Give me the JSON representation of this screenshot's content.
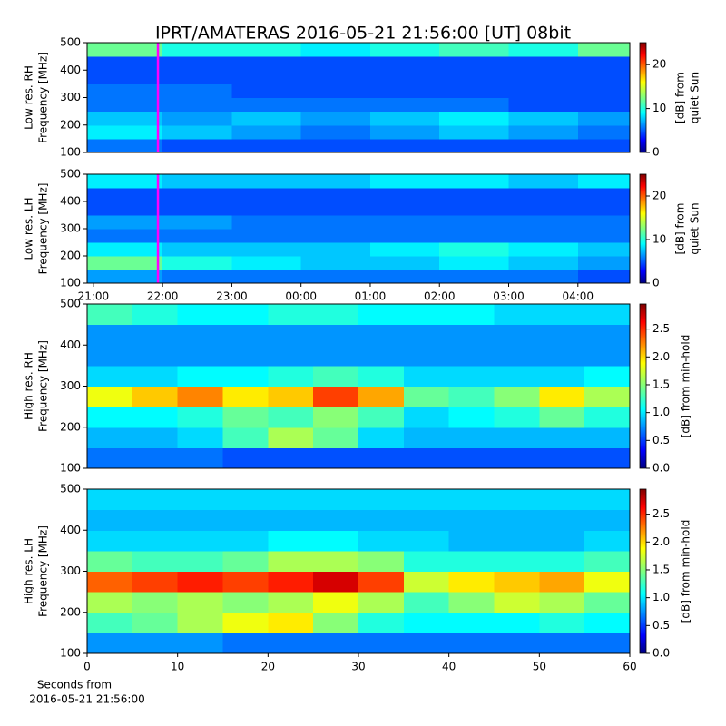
{
  "chart_data": [
    {
      "type": "heatmap",
      "title": "IPRT/AMATERAS 2016-05-21 21:56:00 [UT]   08bit",
      "ylabel": [
        "Low res. RH",
        "Frequency [MHz]"
      ],
      "ylim": [
        100,
        500
      ],
      "yticks": [
        100,
        200,
        300,
        400,
        500
      ],
      "xlim": [
        20.91,
        28.75
      ],
      "x_bins": [
        20.91,
        22,
        23,
        24,
        25,
        26,
        27,
        28,
        28.75
      ],
      "y_bins": [
        100,
        150,
        200,
        250,
        300,
        350,
        400,
        450,
        500
      ],
      "z": [
        [
          6,
          5,
          5,
          5,
          5,
          5,
          5,
          5
        ],
        [
          9,
          8,
          7,
          6,
          7,
          8,
          7,
          6
        ],
        [
          8,
          7,
          8,
          7,
          8,
          9,
          8,
          7
        ],
        [
          6,
          6,
          6,
          6,
          6,
          6,
          5,
          5
        ],
        [
          6,
          6,
          5,
          5,
          5,
          5,
          5,
          5
        ],
        [
          5,
          5,
          5,
          5,
          5,
          5,
          5,
          5
        ],
        [
          5,
          5,
          5,
          5,
          5,
          5,
          5,
          5
        ],
        [
          12,
          10,
          10,
          9,
          10,
          11,
          10,
          12
        ]
      ],
      "zlim": [
        0,
        25
      ],
      "zticks": [
        0,
        10,
        20
      ],
      "colorbar_label": [
        "[dB] from",
        "quiet Sun"
      ],
      "marker_x": 21.933,
      "marker_color": "#ff00ff"
    },
    {
      "type": "heatmap",
      "ylabel": [
        "Low res. LH",
        "Frequency [MHz]"
      ],
      "ylim": [
        100,
        500
      ],
      "yticks": [
        100,
        200,
        300,
        400,
        500
      ],
      "xlim": [
        20.91,
        28.75
      ],
      "x_bins": [
        20.91,
        22,
        23,
        24,
        25,
        26,
        27,
        28,
        28.75
      ],
      "xticks": [
        {
          "value": 21,
          "label": "21:00"
        },
        {
          "value": 22,
          "label": "22:00"
        },
        {
          "value": 23,
          "label": "23:00"
        },
        {
          "value": 24,
          "label": "00:00"
        },
        {
          "value": 25,
          "label": "01:00"
        },
        {
          "value": 26,
          "label": "02:00"
        },
        {
          "value": 27,
          "label": "03:00"
        },
        {
          "value": 28,
          "label": "04:00"
        }
      ],
      "y_bins": [
        100,
        150,
        200,
        250,
        300,
        350,
        400,
        450,
        500
      ],
      "z": [
        [
          7,
          6,
          6,
          6,
          6,
          6,
          6,
          5
        ],
        [
          12,
          10,
          9,
          8,
          8,
          9,
          8,
          7
        ],
        [
          9,
          8,
          8,
          8,
          9,
          10,
          9,
          8
        ],
        [
          6,
          6,
          6,
          6,
          6,
          6,
          6,
          6
        ],
        [
          7,
          7,
          6,
          6,
          6,
          6,
          6,
          6
        ],
        [
          5,
          5,
          5,
          5,
          5,
          5,
          5,
          5
        ],
        [
          5,
          5,
          5,
          5,
          5,
          5,
          5,
          5
        ],
        [
          9,
          8,
          8,
          8,
          9,
          9,
          8,
          9
        ]
      ],
      "zlim": [
        0,
        25
      ],
      "zticks": [
        0,
        10,
        20
      ],
      "colorbar_label": [
        "[dB] from",
        "quiet Sun"
      ],
      "marker_x": 21.933,
      "marker_color": "#ff00ff"
    },
    {
      "type": "heatmap",
      "ylabel": [
        "High res. RH",
        "Frequency [MHz]"
      ],
      "ylim": [
        100,
        500
      ],
      "yticks": [
        100,
        200,
        300,
        400,
        500
      ],
      "xlim": [
        0,
        60
      ],
      "x_bins": [
        0,
        5,
        10,
        15,
        20,
        25,
        30,
        35,
        40,
        45,
        50,
        55,
        60
      ],
      "y_bins": [
        100,
        150,
        200,
        250,
        300,
        350,
        400,
        450,
        500
      ],
      "z": [
        [
          0.7,
          0.7,
          0.7,
          0.6,
          0.6,
          0.6,
          0.6,
          0.6,
          0.6,
          0.6,
          0.6,
          0.6
        ],
        [
          0.9,
          0.9,
          1.0,
          1.3,
          1.6,
          1.4,
          1.0,
          0.9,
          0.9,
          0.9,
          0.9,
          0.9
        ],
        [
          1.1,
          1.1,
          1.2,
          1.4,
          1.3,
          1.5,
          1.3,
          1.0,
          1.1,
          1.2,
          1.4,
          1.2
        ],
        [
          1.8,
          2.0,
          2.2,
          1.9,
          2.0,
          2.4,
          2.1,
          1.4,
          1.3,
          1.5,
          1.9,
          1.6
        ],
        [
          1.0,
          1.0,
          1.1,
          1.1,
          1.2,
          1.3,
          1.2,
          1.0,
          1.0,
          1.0,
          1.0,
          1.1
        ],
        [
          0.8,
          0.8,
          0.8,
          0.8,
          0.8,
          0.8,
          0.8,
          0.8,
          0.8,
          0.8,
          0.8,
          0.8
        ],
        [
          0.8,
          0.8,
          0.8,
          0.8,
          0.8,
          0.8,
          0.8,
          0.8,
          0.8,
          0.8,
          0.8,
          0.8
        ],
        [
          1.3,
          1.2,
          1.1,
          1.1,
          1.2,
          1.2,
          1.1,
          1.1,
          1.1,
          1.0,
          1.0,
          1.0
        ]
      ],
      "zlim": [
        0,
        2.95
      ],
      "zticks": [
        {
          "value": 0,
          "label": "0.0"
        },
        0.5,
        {
          "value": 1,
          "label": "1.0"
        },
        1.5,
        {
          "value": 2,
          "label": "2.0"
        },
        2.5
      ],
      "colorbar_label": [
        "[dB] from min-hold"
      ]
    },
    {
      "type": "heatmap",
      "ylabel": [
        "High res. LH",
        "Frequency [MHz]"
      ],
      "ylim": [
        100,
        500
      ],
      "yticks": [
        100,
        200,
        300,
        400,
        500
      ],
      "xlim": [
        0,
        60
      ],
      "xticks": [
        0,
        10,
        20,
        30,
        40,
        50,
        60
      ],
      "xlabel": [
        "Seconds from",
        "2016-05-21 21:56:00"
      ],
      "x_bins": [
        0,
        5,
        10,
        15,
        20,
        25,
        30,
        35,
        40,
        45,
        50,
        55,
        60
      ],
      "y_bins": [
        100,
        150,
        200,
        250,
        300,
        350,
        400,
        450,
        500
      ],
      "z": [
        [
          0.8,
          0.8,
          0.8,
          0.7,
          0.7,
          0.7,
          0.7,
          0.7,
          0.7,
          0.7,
          0.7,
          0.7
        ],
        [
          1.3,
          1.4,
          1.6,
          1.8,
          1.9,
          1.5,
          1.2,
          1.1,
          1.1,
          1.1,
          1.2,
          1.1
        ],
        [
          1.6,
          1.5,
          1.6,
          1.5,
          1.6,
          1.8,
          1.6,
          1.3,
          1.5,
          1.7,
          1.6,
          1.4
        ],
        [
          2.3,
          2.4,
          2.5,
          2.4,
          2.5,
          2.7,
          2.4,
          1.7,
          1.9,
          2.0,
          2.1,
          1.8
        ],
        [
          1.4,
          1.3,
          1.3,
          1.4,
          1.6,
          1.6,
          1.5,
          1.2,
          1.2,
          1.2,
          1.2,
          1.3
        ],
        [
          1.0,
          1.0,
          1.0,
          1.0,
          1.1,
          1.1,
          1.0,
          1.0,
          0.9,
          0.9,
          0.9,
          1.0
        ],
        [
          0.9,
          0.9,
          0.9,
          0.9,
          0.9,
          0.9,
          0.9,
          0.9,
          0.9,
          0.9,
          0.9,
          0.9
        ],
        [
          1.0,
          1.0,
          1.0,
          1.0,
          1.0,
          1.0,
          1.0,
          1.0,
          1.0,
          1.0,
          1.0,
          1.0
        ]
      ],
      "zlim": [
        0,
        2.95
      ],
      "zticks": [
        {
          "value": 0,
          "label": "0.0"
        },
        0.5,
        {
          "value": 1,
          "label": "1.0"
        },
        1.5,
        {
          "value": 2,
          "label": "2.0"
        },
        2.5
      ],
      "colorbar_label": [
        "[dB] from min-hold"
      ]
    }
  ]
}
